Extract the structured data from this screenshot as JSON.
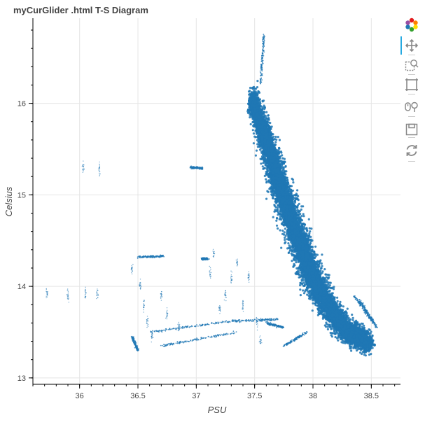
{
  "chart_data": {
    "type": "scatter",
    "title": "myCurGlider .html T-S Diagram",
    "xlabel": "PSU",
    "ylabel": "Celsius",
    "xlim": [
      35.6,
      38.75
    ],
    "ylim": [
      12.93,
      16.93
    ],
    "xticks": [
      36,
      36.5,
      37,
      37.5,
      38,
      38.5
    ],
    "xtick_labels": [
      "36",
      "36.5",
      "37",
      "37.5",
      "38",
      "38.5"
    ],
    "yticks": [
      13,
      14,
      15,
      16
    ],
    "ytick_labels": [
      "13",
      "14",
      "15",
      "16"
    ],
    "grid": true,
    "point_color": "#1f77b4",
    "main_cloud_ridge": [
      [
        37.48,
        16.05,
        0.07,
        0.22
      ],
      [
        37.6,
        15.6,
        0.09,
        0.22
      ],
      [
        37.72,
        15.1,
        0.12,
        0.22
      ],
      [
        37.85,
        14.6,
        0.13,
        0.22
      ],
      [
        37.98,
        14.15,
        0.12,
        0.22
      ],
      [
        38.12,
        13.8,
        0.11,
        0.2
      ],
      [
        38.3,
        13.5,
        0.12,
        0.16
      ],
      [
        38.48,
        13.38,
        0.06,
        0.16
      ]
    ],
    "scatter_segments": [
      [
        [
          37.58,
          16.75
        ],
        [
          37.55,
          16.2
        ]
      ],
      [
        [
          36.95,
          15.3
        ],
        [
          37.05,
          15.29
        ]
      ],
      [
        [
          36.5,
          14.32
        ],
        [
          36.72,
          14.33
        ]
      ],
      [
        [
          37.05,
          14.3
        ],
        [
          37.1,
          14.3
        ]
      ],
      [
        [
          36.6,
          13.5
        ],
        [
          37.3,
          13.62
        ]
      ],
      [
        [
          37.3,
          13.62
        ],
        [
          37.7,
          13.64
        ]
      ],
      [
        [
          36.7,
          13.35
        ],
        [
          37.35,
          13.5
        ]
      ],
      [
        [
          37.6,
          13.6
        ],
        [
          37.75,
          13.55
        ]
      ],
      [
        [
          37.75,
          13.35
        ],
        [
          37.95,
          13.5
        ]
      ],
      [
        [
          36.45,
          13.45
        ],
        [
          36.5,
          13.3
        ]
      ],
      [
        [
          38.35,
          13.9
        ],
        [
          38.52,
          13.6
        ]
      ],
      [
        [
          38.4,
          13.85
        ],
        [
          38.55,
          13.55
        ]
      ]
    ],
    "sparse_points": [
      [
        35.72,
        13.91
      ],
      [
        35.9,
        13.91
      ],
      [
        36.05,
        13.91
      ],
      [
        36.15,
        13.91
      ],
      [
        36.03,
        15.3
      ],
      [
        36.17,
        15.29
      ],
      [
        36.45,
        14.2
      ],
      [
        36.52,
        14.0
      ],
      [
        36.55,
        13.8
      ],
      [
        36.58,
        13.6
      ],
      [
        36.62,
        13.45
      ],
      [
        36.7,
        13.9
      ],
      [
        36.75,
        13.7
      ],
      [
        36.85,
        13.55
      ],
      [
        37.2,
        13.75
      ],
      [
        37.25,
        13.9
      ],
      [
        37.3,
        14.1
      ],
      [
        37.35,
        14.25
      ],
      [
        37.45,
        14.1
      ],
      [
        37.4,
        13.8
      ],
      [
        37.52,
        13.6
      ],
      [
        37.15,
        14.35
      ],
      [
        37.12,
        14.15
      ],
      [
        37.55,
        13.4
      ]
    ]
  },
  "toolbar": {
    "tools": [
      "bokeh-logo-icon",
      "pan-icon",
      "box-zoom-icon",
      "box-select-icon",
      "wheel-zoom-icon",
      "save-icon",
      "reset-icon"
    ]
  }
}
